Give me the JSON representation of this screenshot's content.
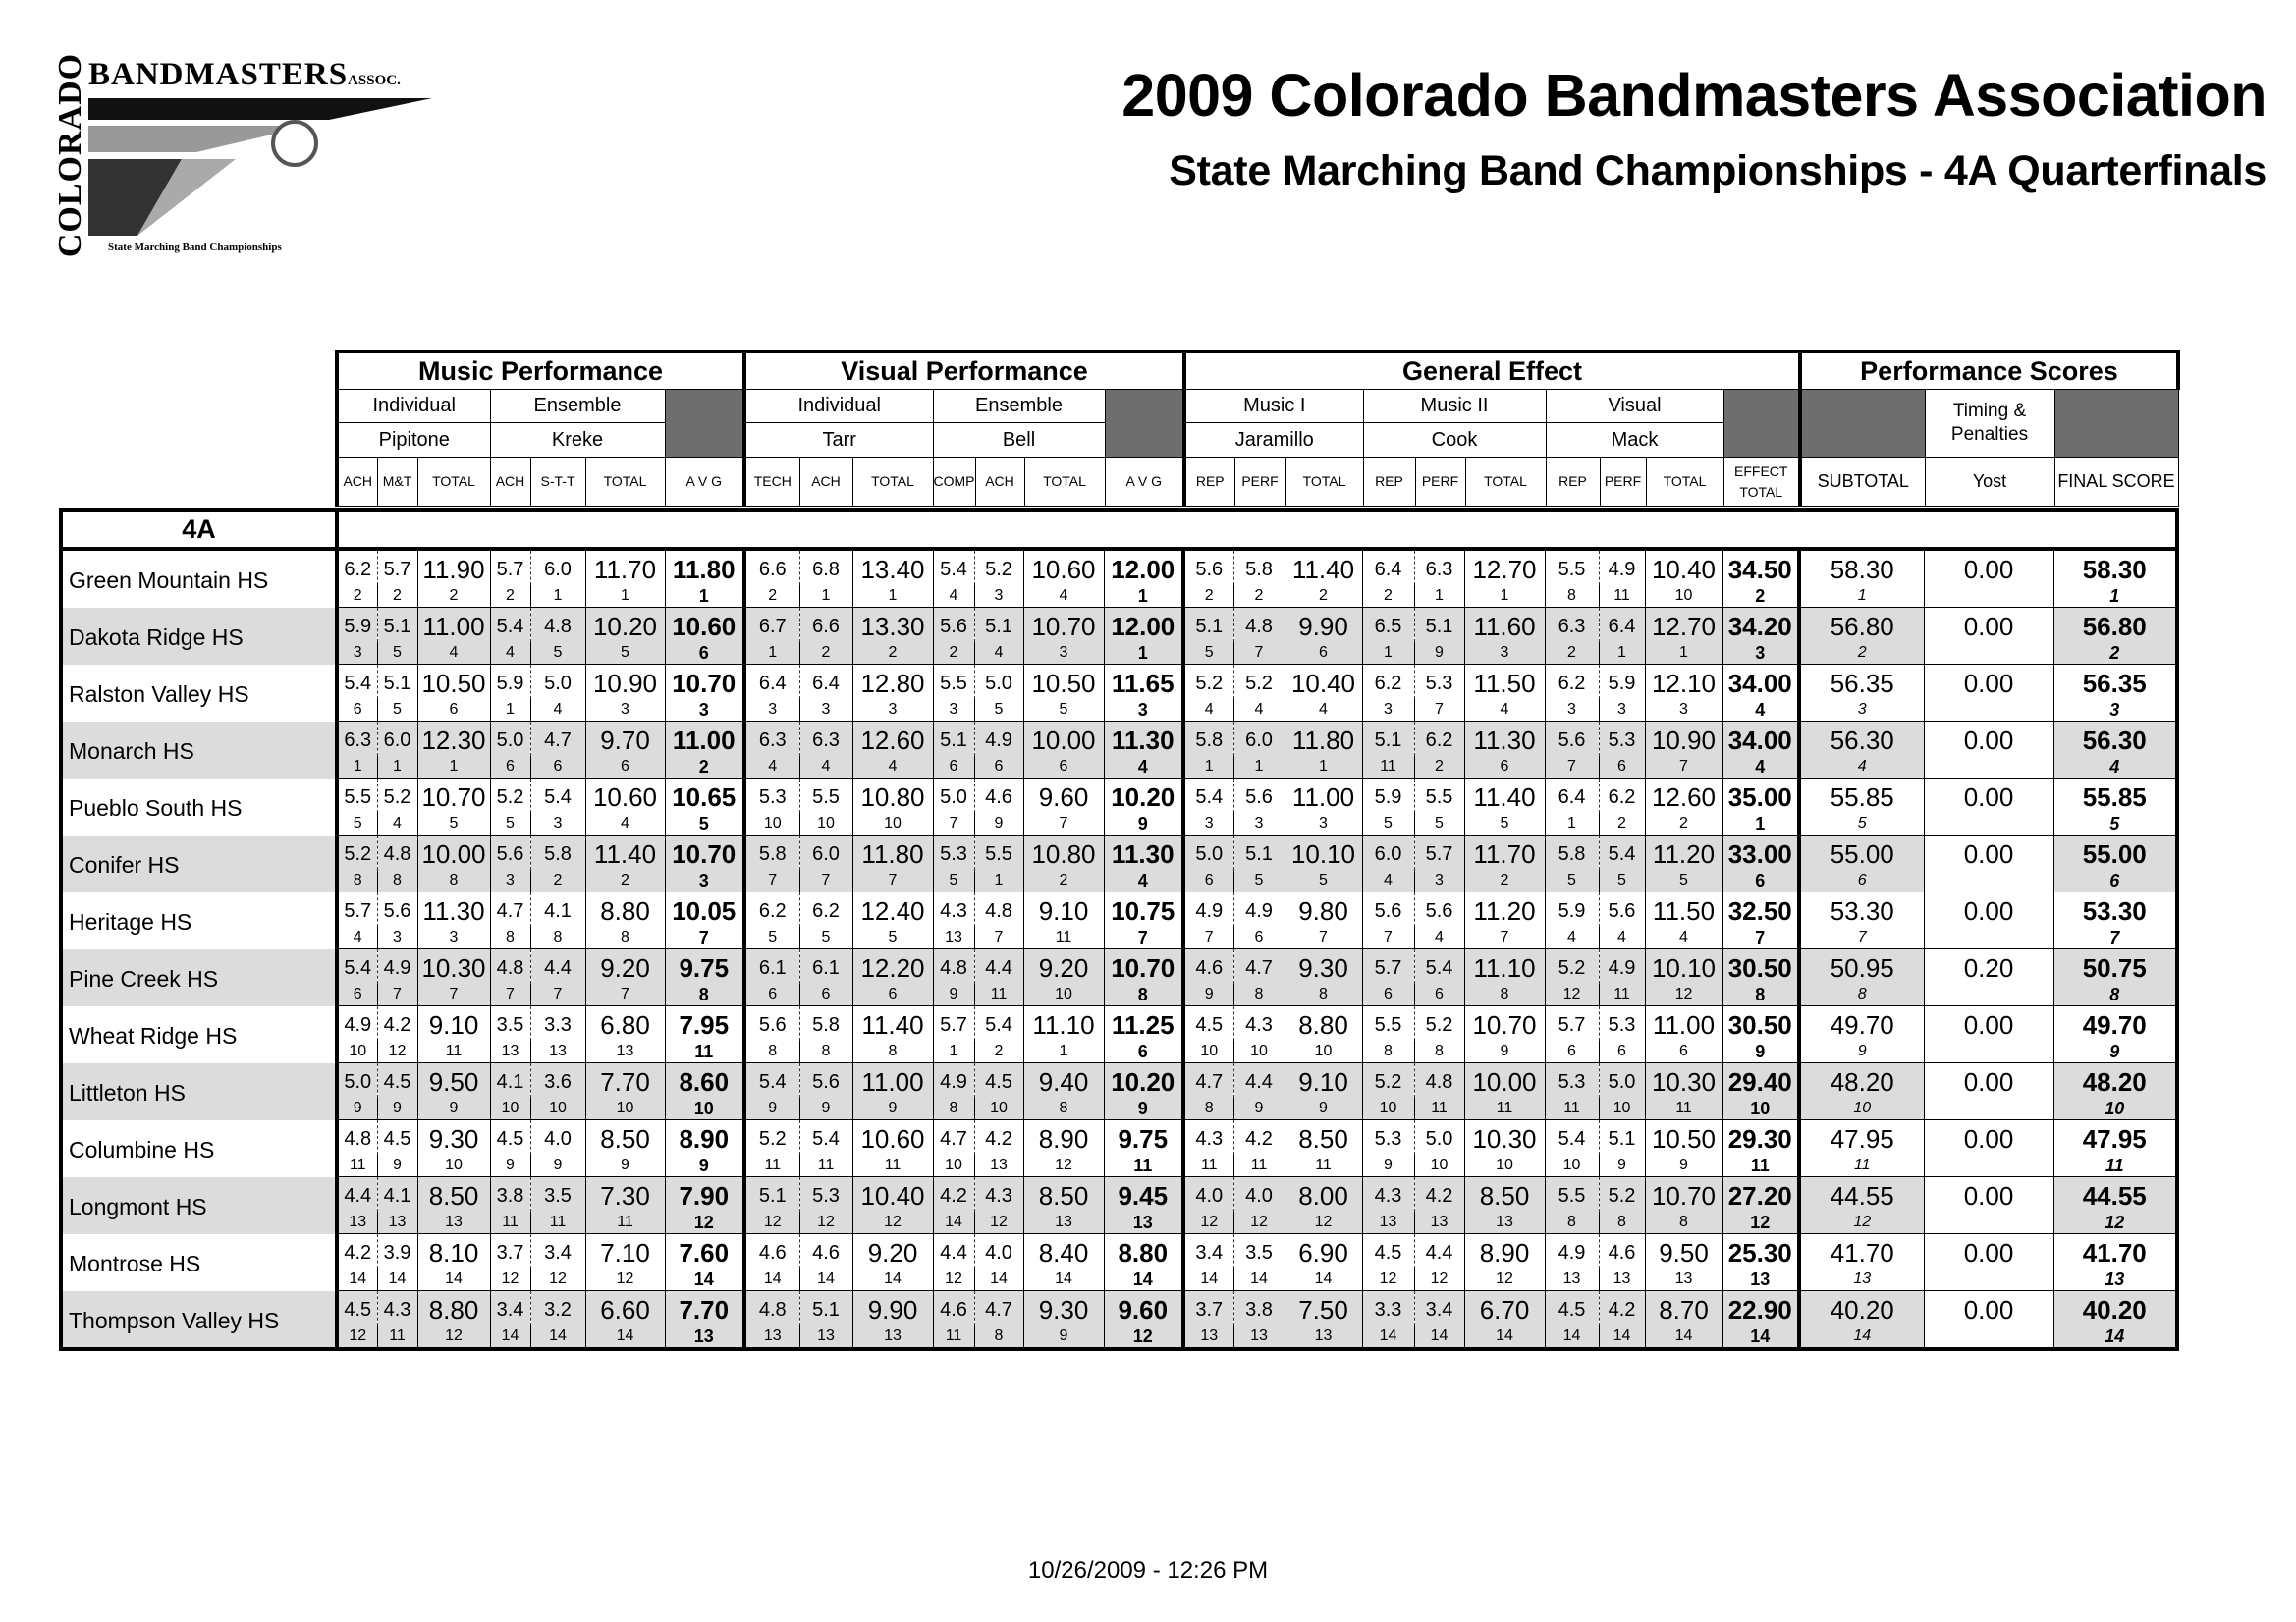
{
  "logo": {
    "vertical_text": "COLORADO",
    "top_text": "BANDMASTERS",
    "suffix": "ASSOC.",
    "tagline": "State Marching Band Championships"
  },
  "header": {
    "title": "2009 Colorado Bandmasters Association",
    "subtitle": "State Marching Band Championships - 4A Quarterfinals"
  },
  "table": {
    "groups": [
      "Music Performance",
      "Visual Performance",
      "General Effect",
      "Performance Scores"
    ],
    "captions": {
      "individual": "Individual",
      "ensemble": "Ensemble",
      "music1": "Music I",
      "music2": "Music II",
      "visual": "Visual",
      "timing": "Timing & Penalties"
    },
    "judges": [
      "Pipitone",
      "Kreke",
      "Tarr",
      "Bell",
      "Jaramillo",
      "Cook",
      "Mack",
      "Yost"
    ],
    "columns": [
      "ACH",
      "M&T",
      "TOTAL",
      "ACH",
      "S-T-T",
      "TOTAL",
      "A V G",
      "TECH",
      "ACH",
      "TOTAL",
      "COMP",
      "ACH",
      "TOTAL",
      "A V G",
      "REP",
      "PERF",
      "TOTAL",
      "REP",
      "PERF",
      "TOTAL",
      "REP",
      "PERF",
      "TOTAL",
      "EFFECT TOTAL",
      "SUBTOTAL",
      "Yost",
      "FINAL SCORE"
    ],
    "level": "4A"
  },
  "bands": [
    {
      "name": "Green Mountain HS",
      "scores": [
        "6.2",
        "5.7",
        "11.90",
        "5.7",
        "6.0",
        "11.70",
        "11.80",
        "6.6",
        "6.8",
        "13.40",
        "5.4",
        "5.2",
        "10.60",
        "12.00",
        "5.6",
        "5.8",
        "11.40",
        "6.4",
        "6.3",
        "12.70",
        "5.5",
        "4.9",
        "10.40",
        "34.50",
        "58.30",
        "0.00",
        "58.30"
      ],
      "ranks": [
        "2",
        "2",
        "2",
        "2",
        "1",
        "1",
        "1",
        "2",
        "1",
        "1",
        "4",
        "3",
        "4",
        "1",
        "2",
        "2",
        "2",
        "2",
        "1",
        "1",
        "8",
        "11",
        "10",
        "2",
        "1",
        "1"
      ]
    },
    {
      "name": "Dakota Ridge HS",
      "scores": [
        "5.9",
        "5.1",
        "11.00",
        "5.4",
        "4.8",
        "10.20",
        "10.60",
        "6.7",
        "6.6",
        "13.30",
        "5.6",
        "5.1",
        "10.70",
        "12.00",
        "5.1",
        "4.8",
        "9.90",
        "6.5",
        "5.1",
        "11.60",
        "6.3",
        "6.4",
        "12.70",
        "34.20",
        "56.80",
        "0.00",
        "56.80"
      ],
      "ranks": [
        "3",
        "5",
        "4",
        "4",
        "5",
        "5",
        "6",
        "1",
        "2",
        "2",
        "2",
        "4",
        "3",
        "1",
        "5",
        "7",
        "6",
        "1",
        "9",
        "3",
        "2",
        "1",
        "1",
        "3",
        "2",
        "2"
      ]
    },
    {
      "name": "Ralston Valley HS",
      "scores": [
        "5.4",
        "5.1",
        "10.50",
        "5.9",
        "5.0",
        "10.90",
        "10.70",
        "6.4",
        "6.4",
        "12.80",
        "5.5",
        "5.0",
        "10.50",
        "11.65",
        "5.2",
        "5.2",
        "10.40",
        "6.2",
        "5.3",
        "11.50",
        "6.2",
        "5.9",
        "12.10",
        "34.00",
        "56.35",
        "0.00",
        "56.35"
      ],
      "ranks": [
        "6",
        "5",
        "6",
        "1",
        "4",
        "3",
        "3",
        "3",
        "3",
        "3",
        "3",
        "5",
        "5",
        "3",
        "4",
        "4",
        "4",
        "3",
        "7",
        "4",
        "3",
        "3",
        "3",
        "4",
        "3",
        "3"
      ]
    },
    {
      "name": "Monarch HS",
      "scores": [
        "6.3",
        "6.0",
        "12.30",
        "5.0",
        "4.7",
        "9.70",
        "11.00",
        "6.3",
        "6.3",
        "12.60",
        "5.1",
        "4.9",
        "10.00",
        "11.30",
        "5.8",
        "6.0",
        "11.80",
        "5.1",
        "6.2",
        "11.30",
        "5.6",
        "5.3",
        "10.90",
        "34.00",
        "56.30",
        "0.00",
        "56.30"
      ],
      "ranks": [
        "1",
        "1",
        "1",
        "6",
        "6",
        "6",
        "2",
        "4",
        "4",
        "4",
        "6",
        "6",
        "6",
        "4",
        "1",
        "1",
        "1",
        "11",
        "2",
        "6",
        "7",
        "6",
        "7",
        "4",
        "4",
        "4"
      ]
    },
    {
      "name": "Pueblo South HS",
      "scores": [
        "5.5",
        "5.2",
        "10.70",
        "5.2",
        "5.4",
        "10.60",
        "10.65",
        "5.3",
        "5.5",
        "10.80",
        "5.0",
        "4.6",
        "9.60",
        "10.20",
        "5.4",
        "5.6",
        "11.00",
        "5.9",
        "5.5",
        "11.40",
        "6.4",
        "6.2",
        "12.60",
        "35.00",
        "55.85",
        "0.00",
        "55.85"
      ],
      "ranks": [
        "5",
        "4",
        "5",
        "5",
        "3",
        "4",
        "5",
        "10",
        "10",
        "10",
        "7",
        "9",
        "7",
        "9",
        "3",
        "3",
        "3",
        "5",
        "5",
        "5",
        "1",
        "2",
        "2",
        "1",
        "5",
        "5"
      ]
    },
    {
      "name": "Conifer HS",
      "scores": [
        "5.2",
        "4.8",
        "10.00",
        "5.6",
        "5.8",
        "11.40",
        "10.70",
        "5.8",
        "6.0",
        "11.80",
        "5.3",
        "5.5",
        "10.80",
        "11.30",
        "5.0",
        "5.1",
        "10.10",
        "6.0",
        "5.7",
        "11.70",
        "5.8",
        "5.4",
        "11.20",
        "33.00",
        "55.00",
        "0.00",
        "55.00"
      ],
      "ranks": [
        "8",
        "8",
        "8",
        "3",
        "2",
        "2",
        "3",
        "7",
        "7",
        "7",
        "5",
        "1",
        "2",
        "4",
        "6",
        "5",
        "5",
        "4",
        "3",
        "2",
        "5",
        "5",
        "5",
        "6",
        "6",
        "6"
      ]
    },
    {
      "name": "Heritage HS",
      "scores": [
        "5.7",
        "5.6",
        "11.30",
        "4.7",
        "4.1",
        "8.80",
        "10.05",
        "6.2",
        "6.2",
        "12.40",
        "4.3",
        "4.8",
        "9.10",
        "10.75",
        "4.9",
        "4.9",
        "9.80",
        "5.6",
        "5.6",
        "11.20",
        "5.9",
        "5.6",
        "11.50",
        "32.50",
        "53.30",
        "0.00",
        "53.30"
      ],
      "ranks": [
        "4",
        "3",
        "3",
        "8",
        "8",
        "8",
        "7",
        "5",
        "5",
        "5",
        "13",
        "7",
        "11",
        "7",
        "7",
        "6",
        "7",
        "7",
        "4",
        "7",
        "4",
        "4",
        "4",
        "7",
        "7",
        "7"
      ]
    },
    {
      "name": "Pine Creek HS",
      "scores": [
        "5.4",
        "4.9",
        "10.30",
        "4.8",
        "4.4",
        "9.20",
        "9.75",
        "6.1",
        "6.1",
        "12.20",
        "4.8",
        "4.4",
        "9.20",
        "10.70",
        "4.6",
        "4.7",
        "9.30",
        "5.7",
        "5.4",
        "11.10",
        "5.2",
        "4.9",
        "10.10",
        "30.50",
        "50.95",
        "0.20",
        "50.75"
      ],
      "ranks": [
        "6",
        "7",
        "7",
        "7",
        "7",
        "7",
        "8",
        "6",
        "6",
        "6",
        "9",
        "11",
        "10",
        "8",
        "9",
        "8",
        "8",
        "6",
        "6",
        "8",
        "12",
        "11",
        "12",
        "8",
        "8",
        "8"
      ]
    },
    {
      "name": "Wheat Ridge HS",
      "scores": [
        "4.9",
        "4.2",
        "9.10",
        "3.5",
        "3.3",
        "6.80",
        "7.95",
        "5.6",
        "5.8",
        "11.40",
        "5.7",
        "5.4",
        "11.10",
        "11.25",
        "4.5",
        "4.3",
        "8.80",
        "5.5",
        "5.2",
        "10.70",
        "5.7",
        "5.3",
        "11.00",
        "30.50",
        "49.70",
        "0.00",
        "49.70"
      ],
      "ranks": [
        "10",
        "12",
        "11",
        "13",
        "13",
        "13",
        "11",
        "8",
        "8",
        "8",
        "1",
        "2",
        "1",
        "6",
        "10",
        "10",
        "10",
        "8",
        "8",
        "9",
        "6",
        "6",
        "6",
        "9",
        "9",
        "9"
      ]
    },
    {
      "name": "Littleton HS",
      "scores": [
        "5.0",
        "4.5",
        "9.50",
        "4.1",
        "3.6",
        "7.70",
        "8.60",
        "5.4",
        "5.6",
        "11.00",
        "4.9",
        "4.5",
        "9.40",
        "10.20",
        "4.7",
        "4.4",
        "9.10",
        "5.2",
        "4.8",
        "10.00",
        "5.3",
        "5.0",
        "10.30",
        "29.40",
        "48.20",
        "0.00",
        "48.20"
      ],
      "ranks": [
        "9",
        "9",
        "9",
        "10",
        "10",
        "10",
        "10",
        "9",
        "9",
        "9",
        "8",
        "10",
        "8",
        "9",
        "8",
        "9",
        "9",
        "10",
        "11",
        "11",
        "11",
        "10",
        "11",
        "10",
        "10",
        "10"
      ]
    },
    {
      "name": "Columbine HS",
      "scores": [
        "4.8",
        "4.5",
        "9.30",
        "4.5",
        "4.0",
        "8.50",
        "8.90",
        "5.2",
        "5.4",
        "10.60",
        "4.7",
        "4.2",
        "8.90",
        "9.75",
        "4.3",
        "4.2",
        "8.50",
        "5.3",
        "5.0",
        "10.30",
        "5.4",
        "5.1",
        "10.50",
        "29.30",
        "47.95",
        "0.00",
        "47.95"
      ],
      "ranks": [
        "11",
        "9",
        "10",
        "9",
        "9",
        "9",
        "9",
        "11",
        "11",
        "11",
        "10",
        "13",
        "12",
        "11",
        "11",
        "11",
        "11",
        "9",
        "10",
        "10",
        "10",
        "9",
        "9",
        "11",
        "11",
        "11"
      ]
    },
    {
      "name": "Longmont HS",
      "scores": [
        "4.4",
        "4.1",
        "8.50",
        "3.8",
        "3.5",
        "7.30",
        "7.90",
        "5.1",
        "5.3",
        "10.40",
        "4.2",
        "4.3",
        "8.50",
        "9.45",
        "4.0",
        "4.0",
        "8.00",
        "4.3",
        "4.2",
        "8.50",
        "5.5",
        "5.2",
        "10.70",
        "27.20",
        "44.55",
        "0.00",
        "44.55"
      ],
      "ranks": [
        "13",
        "13",
        "13",
        "11",
        "11",
        "11",
        "12",
        "12",
        "12",
        "12",
        "14",
        "12",
        "13",
        "13",
        "12",
        "12",
        "12",
        "13",
        "13",
        "13",
        "8",
        "8",
        "8",
        "12",
        "12",
        "12"
      ]
    },
    {
      "name": "Montrose HS",
      "scores": [
        "4.2",
        "3.9",
        "8.10",
        "3.7",
        "3.4",
        "7.10",
        "7.60",
        "4.6",
        "4.6",
        "9.20",
        "4.4",
        "4.0",
        "8.40",
        "8.80",
        "3.4",
        "3.5",
        "6.90",
        "4.5",
        "4.4",
        "8.90",
        "4.9",
        "4.6",
        "9.50",
        "25.30",
        "41.70",
        "0.00",
        "41.70"
      ],
      "ranks": [
        "14",
        "14",
        "14",
        "12",
        "12",
        "12",
        "14",
        "14",
        "14",
        "14",
        "12",
        "14",
        "14",
        "14",
        "14",
        "14",
        "14",
        "12",
        "12",
        "12",
        "13",
        "13",
        "13",
        "13",
        "13",
        "13"
      ]
    },
    {
      "name": "Thompson Valley HS",
      "scores": [
        "4.5",
        "4.3",
        "8.80",
        "3.4",
        "3.2",
        "6.60",
        "7.70",
        "4.8",
        "5.1",
        "9.90",
        "4.6",
        "4.7",
        "9.30",
        "9.60",
        "3.7",
        "3.8",
        "7.50",
        "3.3",
        "3.4",
        "6.70",
        "4.5",
        "4.2",
        "8.70",
        "22.90",
        "40.20",
        "0.00",
        "40.20"
      ],
      "ranks": [
        "12",
        "11",
        "12",
        "14",
        "14",
        "14",
        "13",
        "13",
        "13",
        "13",
        "11",
        "8",
        "9",
        "12",
        "13",
        "13",
        "13",
        "14",
        "14",
        "14",
        "14",
        "14",
        "14",
        "14",
        "14",
        "14"
      ]
    }
  ],
  "footer": {
    "timestamp": "10/26/2009 - 12:26 PM"
  }
}
